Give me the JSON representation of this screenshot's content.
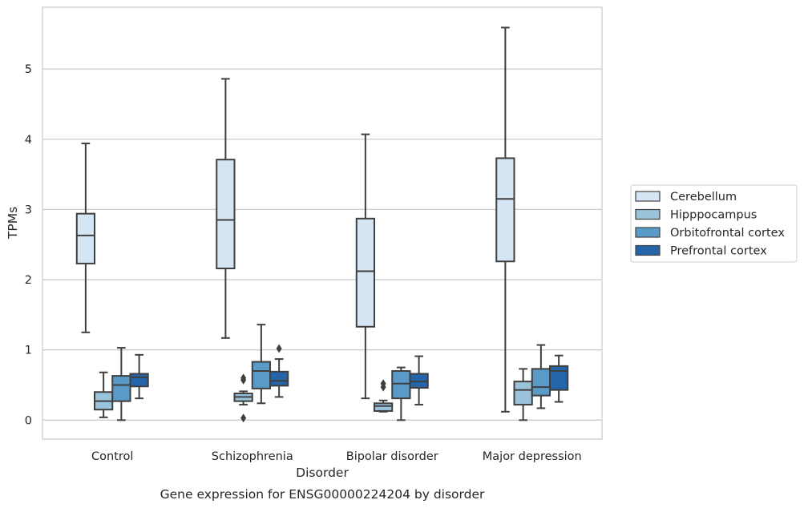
{
  "chart_data": {
    "type": "box",
    "title": "Gene expression for ENSG00000224204 by disorder",
    "xlabel": "Disorder",
    "ylabel": "TPMs",
    "ylim": [
      -0.27,
      5.88
    ],
    "yticks": [
      0,
      1,
      2,
      3,
      4,
      5
    ],
    "grid": true,
    "legend_position": "right",
    "categories": [
      "Control",
      "Schizophrenia",
      "Bipolar disorder",
      "Major depression"
    ],
    "series": [
      {
        "name": "Cerebellum",
        "color": "#d6e5f4",
        "boxes": [
          {
            "whisker_low": 1.25,
            "q1": 2.23,
            "median": 2.63,
            "q3": 2.94,
            "whisker_high": 3.94,
            "outliers": []
          },
          {
            "whisker_low": 1.17,
            "q1": 2.16,
            "median": 2.85,
            "q3": 3.71,
            "whisker_high": 4.86,
            "outliers": []
          },
          {
            "whisker_low": 0.31,
            "q1": 1.33,
            "median": 2.12,
            "q3": 2.87,
            "whisker_high": 4.07,
            "outliers": []
          },
          {
            "whisker_low": 0.12,
            "q1": 2.26,
            "median": 3.15,
            "q3": 3.73,
            "whisker_high": 5.59,
            "outliers": []
          }
        ]
      },
      {
        "name": "Hipppocampus",
        "color": "#9ac3dc",
        "boxes": [
          {
            "whisker_low": 0.04,
            "q1": 0.15,
            "median": 0.27,
            "q3": 0.4,
            "whisker_high": 0.68,
            "outliers": []
          },
          {
            "whisker_low": 0.22,
            "q1": 0.27,
            "median": 0.33,
            "q3": 0.38,
            "whisker_high": 0.41,
            "outliers": [
              0.03,
              0.57,
              0.6
            ]
          },
          {
            "whisker_low": 0.12,
            "q1": 0.13,
            "median": 0.2,
            "q3": 0.24,
            "whisker_high": 0.28,
            "outliers": [
              0.47,
              0.52
            ]
          },
          {
            "whisker_low": 0.0,
            "q1": 0.22,
            "median": 0.43,
            "q3": 0.55,
            "whisker_high": 0.73,
            "outliers": []
          }
        ]
      },
      {
        "name": "Orbitofrontal cortex",
        "color": "#5a9ac8",
        "boxes": [
          {
            "whisker_low": 0.0,
            "q1": 0.27,
            "median": 0.5,
            "q3": 0.63,
            "whisker_high": 1.03,
            "outliers": []
          },
          {
            "whisker_low": 0.24,
            "q1": 0.45,
            "median": 0.7,
            "q3": 0.83,
            "whisker_high": 1.36,
            "outliers": []
          },
          {
            "whisker_low": 0.0,
            "q1": 0.31,
            "median": 0.52,
            "q3": 0.7,
            "whisker_high": 0.75,
            "outliers": []
          },
          {
            "whisker_low": 0.17,
            "q1": 0.35,
            "median": 0.47,
            "q3": 0.73,
            "whisker_high": 1.07,
            "outliers": []
          }
        ]
      },
      {
        "name": "Prefrontal cortex",
        "color": "#2464a9",
        "boxes": [
          {
            "whisker_low": 0.31,
            "q1": 0.48,
            "median": 0.61,
            "q3": 0.66,
            "whisker_high": 0.93,
            "outliers": []
          },
          {
            "whisker_low": 0.33,
            "q1": 0.49,
            "median": 0.56,
            "q3": 0.69,
            "whisker_high": 0.87,
            "outliers": [
              1.02
            ]
          },
          {
            "whisker_low": 0.22,
            "q1": 0.46,
            "median": 0.55,
            "q3": 0.66,
            "whisker_high": 0.91,
            "outliers": []
          },
          {
            "whisker_low": 0.26,
            "q1": 0.43,
            "median": 0.7,
            "q3": 0.77,
            "whisker_high": 0.92,
            "outliers": []
          }
        ]
      }
    ]
  }
}
